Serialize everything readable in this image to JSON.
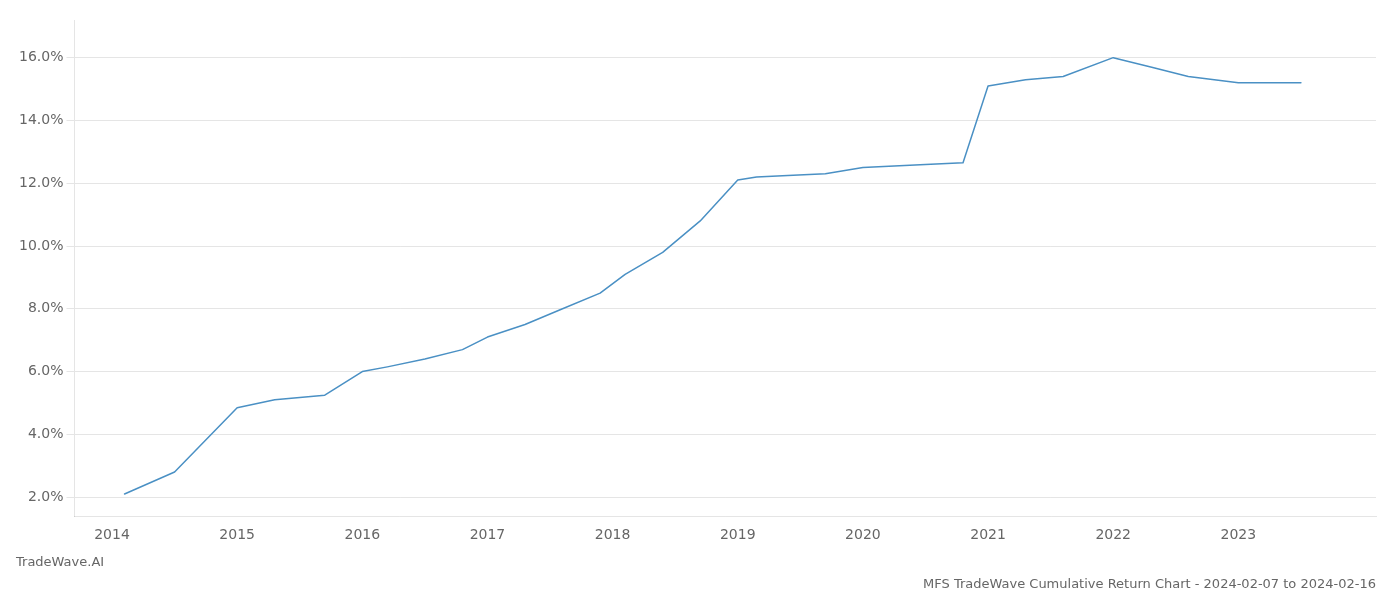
{
  "chart_data": {
    "type": "line",
    "title": "MFS TradeWave Cumulative Return Chart - 2024-02-07 to 2024-02-16",
    "annotations": [
      "TradeWave.AI"
    ],
    "x": [
      2014.1,
      2014.5,
      2015.0,
      2015.3,
      2015.7,
      2016.0,
      2016.2,
      2016.5,
      2016.8,
      2017.0,
      2017.3,
      2017.6,
      2017.9,
      2018.1,
      2018.4,
      2018.7,
      2019.0,
      2019.15,
      2019.4,
      2019.7,
      2020.0,
      2020.25,
      2020.5,
      2020.8,
      2021.0,
      2021.3,
      2021.6,
      2022.0,
      2022.3,
      2022.6,
      2023.0,
      2023.5
    ],
    "values": [
      2.1,
      2.8,
      4.85,
      5.1,
      5.25,
      6.0,
      6.15,
      6.4,
      6.7,
      7.1,
      7.5,
      8.0,
      8.5,
      9.1,
      9.8,
      10.8,
      12.1,
      12.2,
      12.25,
      12.3,
      12.5,
      12.55,
      12.6,
      12.65,
      15.1,
      15.3,
      15.4,
      16.0,
      15.7,
      15.4,
      15.2,
      15.2
    ],
    "color": "#4a90c4",
    "xlim": [
      2013.7,
      2024.1
    ],
    "ylim": [
      1.4,
      17.2
    ],
    "xticks": [
      2014,
      2015,
      2016,
      2017,
      2018,
      2019,
      2020,
      2021,
      2022,
      2023
    ],
    "yticks": [
      {
        "value": 2.0,
        "label": "2.0%"
      },
      {
        "value": 4.0,
        "label": "4.0%"
      },
      {
        "value": 6.0,
        "label": "6.0%"
      },
      {
        "value": 8.0,
        "label": "8.0%"
      },
      {
        "value": 10.0,
        "label": "10.0%"
      },
      {
        "value": 12.0,
        "label": "12.0%"
      },
      {
        "value": 14.0,
        "label": "14.0%"
      },
      {
        "value": 16.0,
        "label": "16.0%"
      }
    ],
    "grid": "y"
  }
}
